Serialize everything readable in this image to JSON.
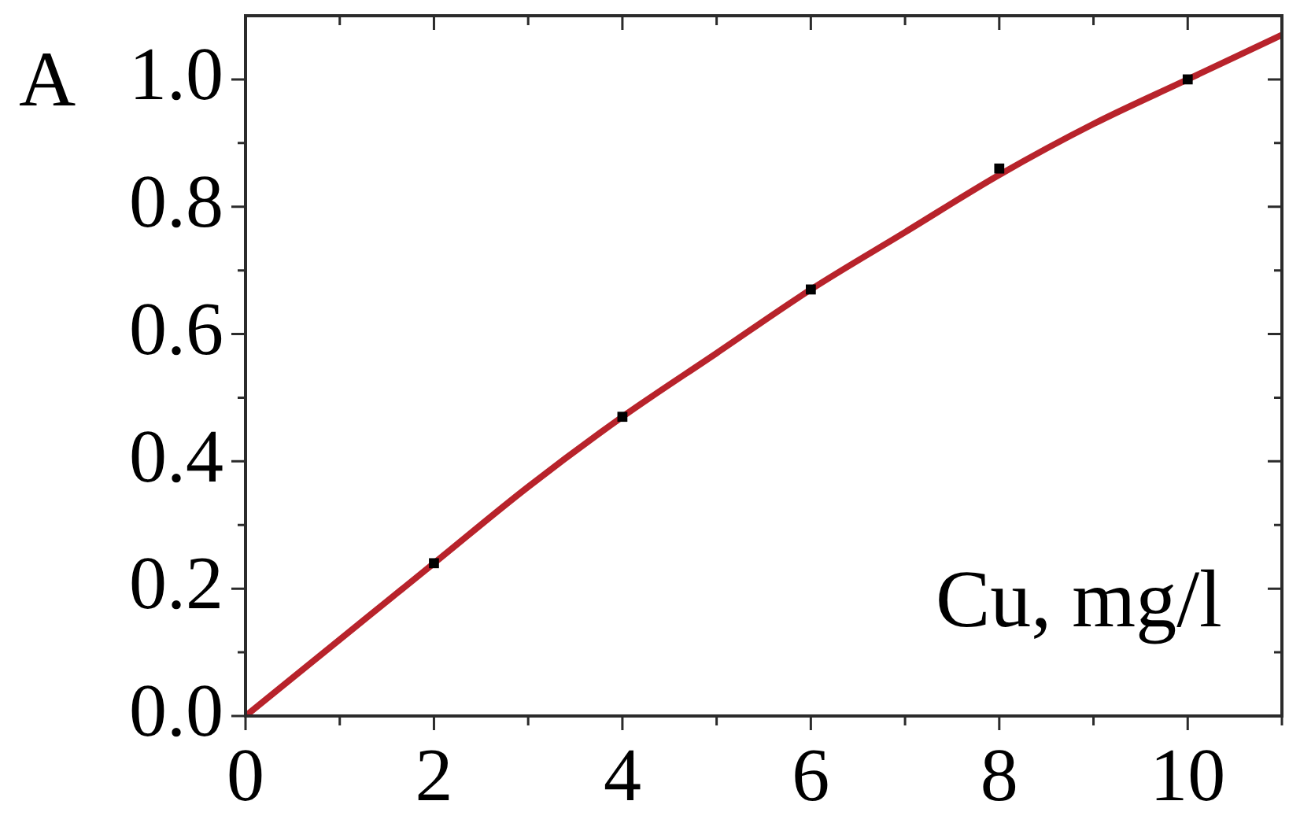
{
  "chart_data": {
    "type": "scatter",
    "xlabel": "Cu, mg/l",
    "ylabel": "A",
    "xlim": [
      0,
      11
    ],
    "ylim": [
      0,
      1.1
    ],
    "xticks": [
      0,
      {
        "value": 1,
        "label": null
      },
      2,
      {
        "value": 3,
        "label": null
      },
      4,
      {
        "value": 5,
        "label": null
      },
      6,
      {
        "value": 7,
        "label": null
      },
      8,
      {
        "value": 9,
        "label": null
      },
      10,
      {
        "value": 11,
        "label": null
      }
    ],
    "yticks": [
      {
        "value": 0,
        "label": "0.0"
      },
      {
        "value": 0.1,
        "label": null
      },
      {
        "value": 0.2,
        "label": "0.2"
      },
      {
        "value": 0.3,
        "label": null
      },
      {
        "value": 0.4,
        "label": "0.4"
      },
      {
        "value": 0.5,
        "label": null
      },
      {
        "value": 0.6,
        "label": "0.6"
      },
      {
        "value": 0.7,
        "label": null
      },
      {
        "value": 0.8,
        "label": "0.8"
      },
      {
        "value": 0.9,
        "label": null
      },
      {
        "value": 1,
        "label": "1.0"
      }
    ],
    "grid": false,
    "legend": false,
    "series": [
      {
        "type": "line",
        "color": "#b8232b",
        "marker": "none",
        "line_style": "solid",
        "x": [
          0,
          1,
          2,
          3,
          4,
          5,
          6,
          7,
          8,
          9,
          10,
          11
        ],
        "values": [
          0,
          0.12,
          0.24,
          0.36,
          0.47,
          0.57,
          0.67,
          0.76,
          0.85,
          0.93,
          1.0,
          1.07
        ]
      },
      {
        "type": "scatter",
        "color": "#000000",
        "marker": "square",
        "x": [
          2,
          4,
          6,
          8,
          10
        ],
        "values": [
          0.24,
          0.47,
          0.67,
          0.86,
          1.0
        ]
      }
    ]
  }
}
